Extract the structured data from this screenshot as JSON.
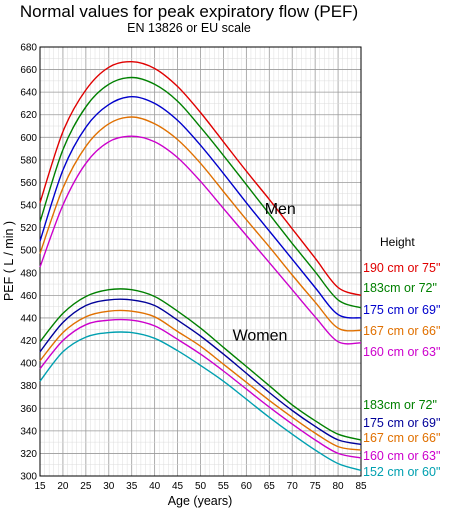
{
  "chart_data": {
    "type": "line",
    "title": "Normal values for peak expiratory flow (PEF)",
    "subtitle": "EN 13826 or EU scale",
    "xlabel": "Age (years)",
    "ylabel": "PEF ( L / min )",
    "xlim": [
      15,
      85
    ],
    "ylim": [
      300,
      680
    ],
    "x_ticks": [
      15,
      20,
      25,
      30,
      35,
      40,
      45,
      50,
      55,
      60,
      65,
      70,
      75,
      80,
      85
    ],
    "y_ticks": [
      300,
      320,
      340,
      360,
      380,
      400,
      420,
      440,
      460,
      480,
      500,
      520,
      540,
      560,
      580,
      600,
      620,
      640,
      660,
      680
    ],
    "grid": true,
    "legend_title": "Height",
    "groups": [
      {
        "label": "Men",
        "text_x": 64,
        "text_y": 532
      },
      {
        "label": "Women",
        "text_x": 57,
        "text_y": 420
      }
    ],
    "x": [
      15,
      20,
      25,
      30,
      35,
      40,
      45,
      50,
      55,
      60,
      65,
      70,
      75,
      80,
      85
    ],
    "series": [
      {
        "name": "190 cm or 75\"",
        "group": "Men",
        "color": "#e00000",
        "values": [
          542,
          605,
          642,
          662,
          667,
          661,
          645,
          622,
          596,
          570,
          545,
          519,
          493,
          467,
          460
        ]
      },
      {
        "name": "183cm or 72\"",
        "group": "Men",
        "color": "#008000",
        "values": [
          525,
          589,
          627,
          647,
          653,
          647,
          632,
          609,
          584,
          558,
          532,
          506,
          481,
          456,
          449
        ]
      },
      {
        "name": "175 cm or 69\"",
        "group": "Men",
        "color": "#0000cc",
        "values": [
          508,
          571,
          609,
          629,
          636,
          630,
          615,
          593,
          568,
          542,
          517,
          492,
          467,
          443,
          440
        ]
      },
      {
        "name": "167 cm or 66\"",
        "group": "Men",
        "color": "#e07000",
        "values": [
          497,
          555,
          592,
          612,
          618,
          612,
          598,
          577,
          552,
          527,
          503,
          478,
          454,
          431,
          429
        ]
      },
      {
        "name": "160 cm or 63\"",
        "group": "Men",
        "color": "#cc00cc",
        "values": [
          485,
          540,
          577,
          596,
          601,
          596,
          582,
          561,
          537,
          513,
          489,
          465,
          441,
          419,
          418
        ]
      },
      {
        "name": "183cm or 72\"",
        "group": "Women",
        "color": "#008000",
        "values": [
          419,
          444,
          459,
          465,
          465,
          459,
          446,
          431,
          414,
          397,
          380,
          363,
          349,
          337,
          332
        ]
      },
      {
        "name": "175 cm or 69\"",
        "group": "Women",
        "color": "#000099",
        "values": [
          410,
          436,
          451,
          456,
          456,
          451,
          438,
          424,
          408,
          391,
          374,
          358,
          344,
          332,
          328
        ]
      },
      {
        "name": "167 cm or 66\"",
        "group": "Women",
        "color": "#e07000",
        "values": [
          402,
          427,
          441,
          446,
          446,
          441,
          428,
          415,
          399,
          383,
          367,
          352,
          338,
          326,
          323
        ]
      },
      {
        "name": "160 cm or 63\"",
        "group": "Women",
        "color": "#cc00cc",
        "values": [
          395,
          420,
          434,
          438,
          438,
          433,
          421,
          408,
          393,
          377,
          361,
          346,
          332,
          320,
          316
        ]
      },
      {
        "name": "152 cm or 60\"",
        "group": "Women",
        "color": "#00a0b0",
        "values": [
          384,
          410,
          423,
          427,
          427,
          422,
          411,
          398,
          384,
          368,
          352,
          337,
          323,
          311,
          305
        ]
      }
    ]
  }
}
